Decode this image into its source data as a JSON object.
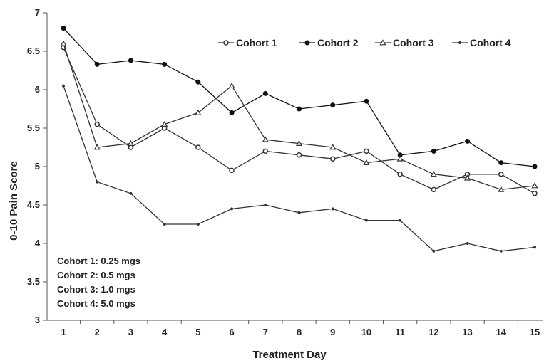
{
  "chart_data": {
    "type": "line",
    "xlabel": "Treatment Day",
    "ylabel": "0-10 Pain Score",
    "x": [
      1,
      2,
      3,
      4,
      5,
      6,
      7,
      8,
      9,
      10,
      11,
      12,
      13,
      14,
      15
    ],
    "ylim": [
      3,
      7
    ],
    "yticks": [
      3,
      3.5,
      4,
      4.5,
      5,
      5.5,
      6,
      6.5,
      7
    ],
    "ytick_labels": [
      "3",
      "3.5",
      "4",
      "4.5",
      "5",
      "5.5",
      "6",
      "6.5",
      "7"
    ],
    "grid": false,
    "legend_position": "top-right",
    "series": [
      {
        "name": "Cohort 1",
        "marker": "circle-open",
        "color": "#333333",
        "values": [
          6.55,
          5.55,
          5.25,
          5.5,
          5.25,
          4.95,
          5.2,
          5.15,
          5.1,
          5.2,
          4.9,
          4.7,
          4.9,
          4.9,
          4.65
        ]
      },
      {
        "name": "Cohort 2",
        "marker": "circle-filled",
        "color": "#111111",
        "values": [
          6.8,
          6.33,
          6.38,
          6.33,
          6.1,
          5.7,
          5.95,
          5.75,
          5.8,
          5.85,
          5.15,
          5.2,
          5.33,
          5.05,
          5.0
        ]
      },
      {
        "name": "Cohort 3",
        "marker": "triangle-open",
        "color": "#333333",
        "values": [
          6.6,
          5.25,
          5.3,
          5.55,
          5.7,
          6.05,
          5.35,
          5.3,
          5.25,
          5.05,
          5.1,
          4.9,
          4.85,
          4.7,
          4.75
        ]
      },
      {
        "name": "Cohort 4",
        "marker": "small-filled",
        "color": "#333333",
        "values": [
          6.05,
          4.8,
          4.65,
          4.25,
          4.25,
          4.45,
          4.5,
          4.4,
          4.45,
          4.3,
          4.3,
          3.9,
          4.0,
          3.9,
          3.95
        ]
      }
    ],
    "annotations": [
      "Cohort 1: 0.25 mgs",
      "Cohort 2: 0.5 mgs",
      "Cohort 3: 1.0 mgs",
      "Cohort 4: 5.0 mgs"
    ]
  }
}
